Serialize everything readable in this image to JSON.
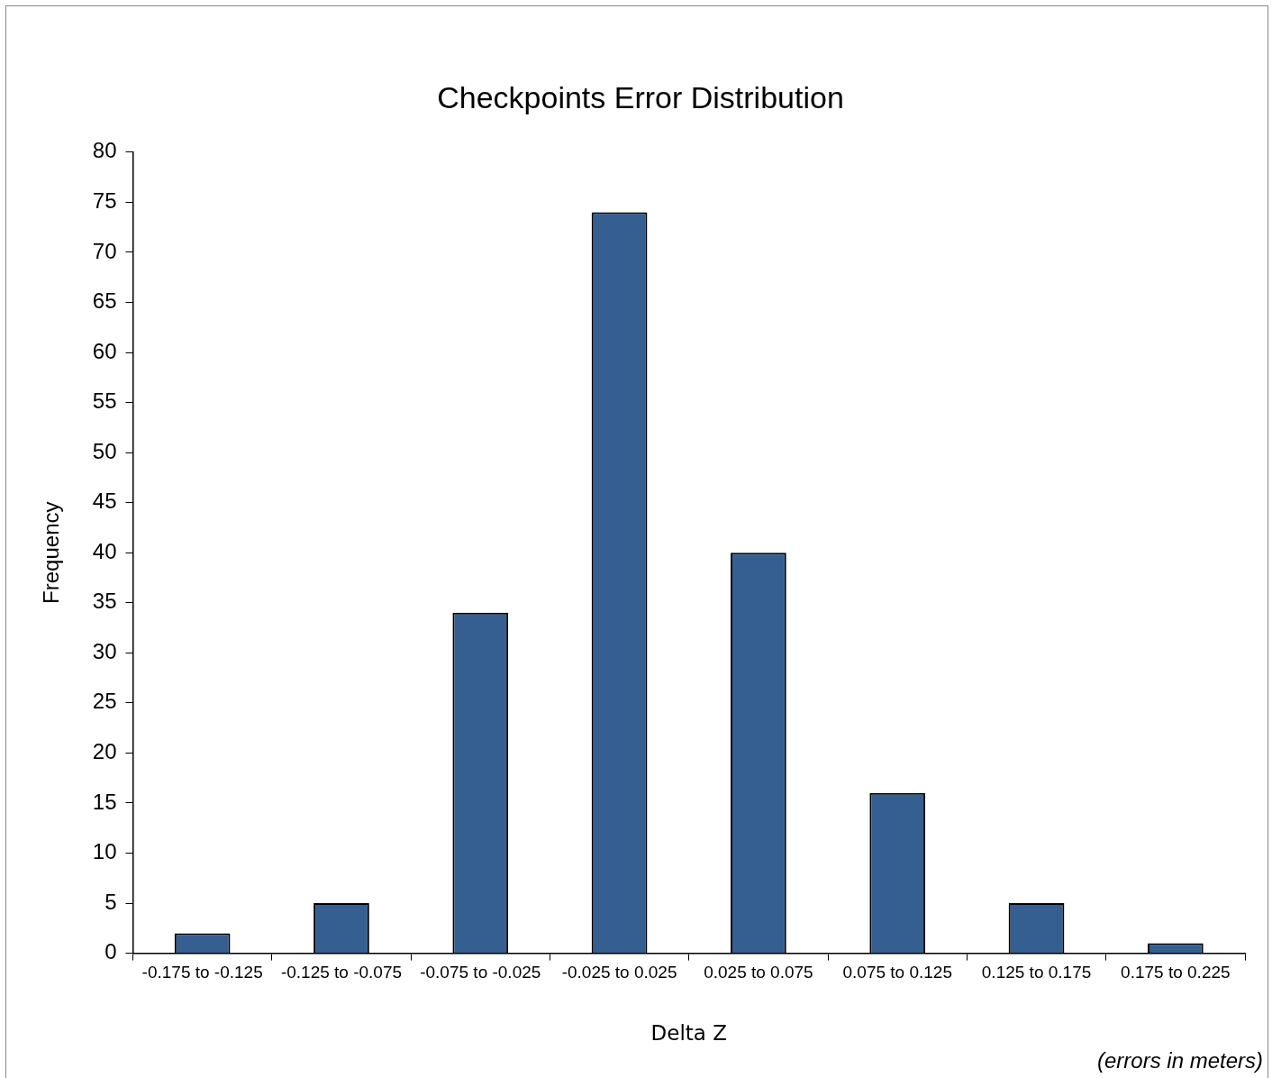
{
  "chart_data": {
    "type": "bar",
    "title": "Checkpoints Error Distribution",
    "xlabel": "Delta Z",
    "ylabel": "Frequency",
    "categories": [
      "-0.175 to -0.125",
      "-0.125 to -0.075",
      "-0.075 to -0.025",
      "-0.025 to 0.025",
      "0.025 to 0.075",
      "0.075 to 0.125",
      "0.125 to 0.175",
      "0.175 to 0.225"
    ],
    "values": [
      2,
      5,
      34,
      74,
      40,
      16,
      5,
      1
    ],
    "color": "#355f91",
    "ylim": [
      0,
      80
    ],
    "yticks": [
      0,
      5,
      10,
      15,
      20,
      25,
      30,
      35,
      40,
      45,
      50,
      55,
      60,
      65,
      70,
      75,
      80
    ],
    "grid": false,
    "legend": false,
    "annotations": [
      "(errors in meters)"
    ]
  }
}
